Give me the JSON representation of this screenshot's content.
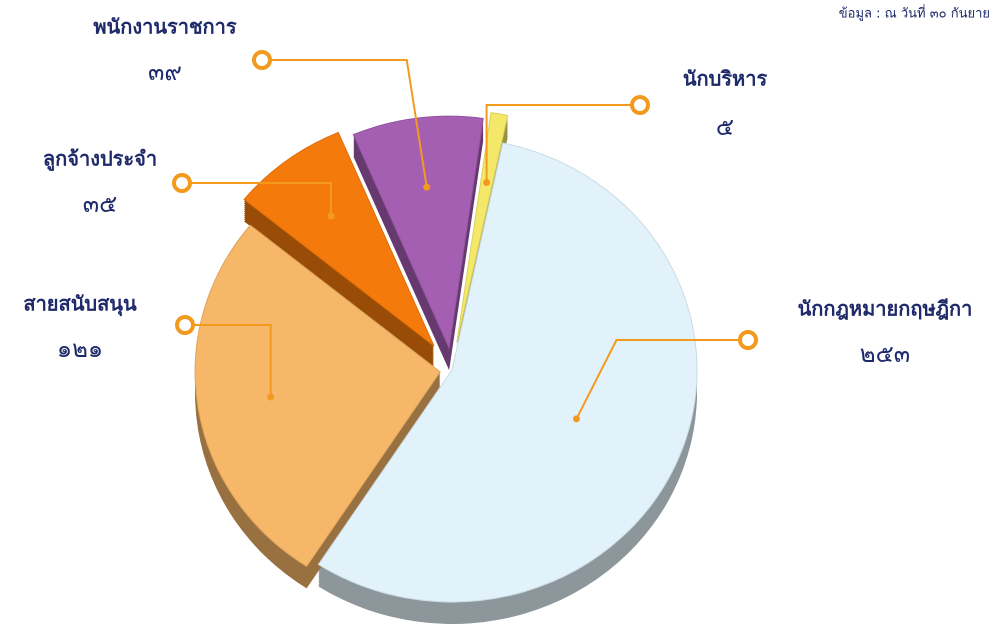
{
  "chart_data": {
    "type": "pie",
    "subtitle": "ข้อมูล : ณ วันที่ ๓๐ กันยาย",
    "categories": [
      "นักบริหาร",
      "นักกฎหมายกฤษฎีกา",
      "สายสนับสนุน",
      "ลูกจ้างประจำ",
      "พนักงานราชการ"
    ],
    "values": [
      5,
      253,
      121,
      35,
      39
    ],
    "value_labels": [
      "๕",
      "๒๕๓",
      "๑๒๑",
      "๓๕",
      "๓๙"
    ],
    "colors": [
      "#f3e86a",
      "#e2f2fa",
      "#f6b768",
      "#f57a0c",
      "#a45eb2"
    ]
  }
}
